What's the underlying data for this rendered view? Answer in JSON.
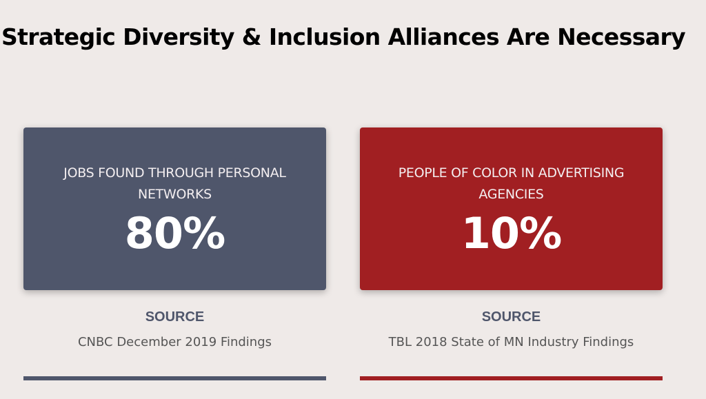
{
  "title": "Strategic Diversity & Inclusion Alliances Are Necessary",
  "stats": [
    {
      "label": "JOBS FOUND THROUGH PERSONAL NETWORKS",
      "value": "80%",
      "source_heading": "SOURCE",
      "source": "CNBC December 2019 Findings",
      "color": "#4f566b"
    },
    {
      "label": "PEOPLE OF COLOR IN ADVERTISING AGENCIES",
      "value": "10%",
      "source_heading": "SOURCE",
      "source": "TBL 2018 State of MN Industry Findings",
      "color": "#a11f22"
    }
  ],
  "colors": {
    "background": "#efeae8",
    "slate": "#4f566b",
    "red": "#a11f22"
  }
}
